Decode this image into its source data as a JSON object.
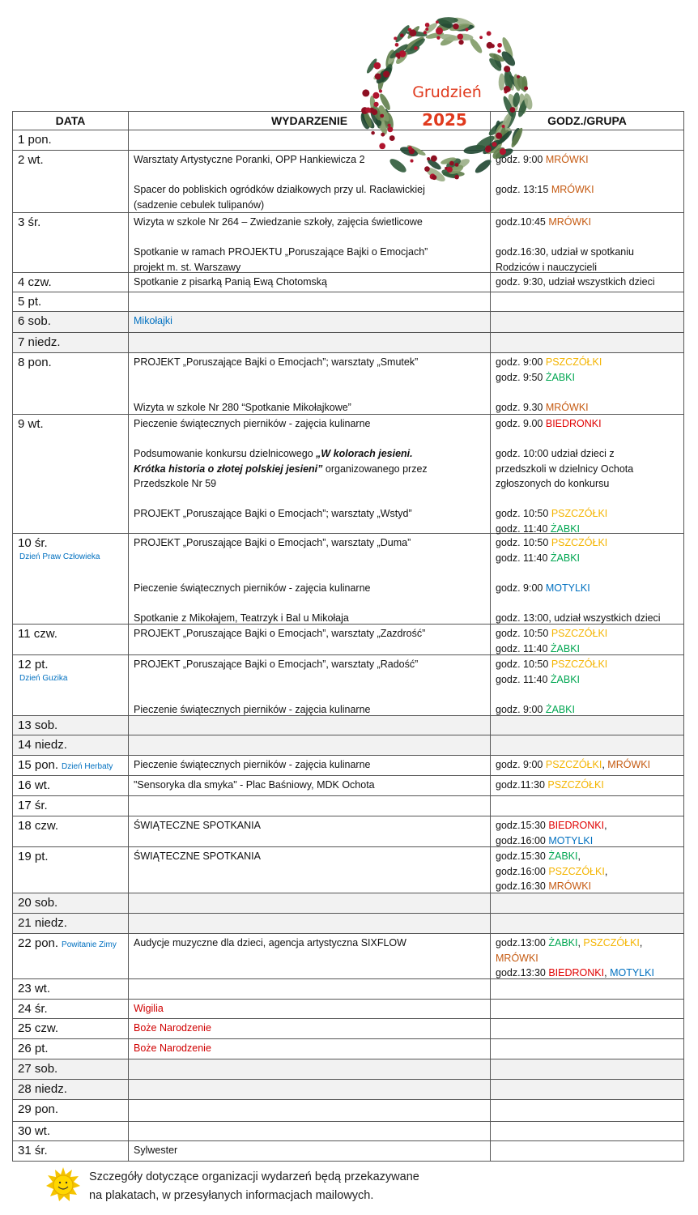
{
  "title": {
    "month": "Grudzień",
    "year": "2025"
  },
  "colors": {
    "MRÓWKI": "#c55a11",
    "PSZCZÓŁKI": "#f4b400",
    "ŻABKI": "#00a651",
    "BIEDRONKI": "#e00000",
    "MOTYLKI": "#0070c0",
    "note": "#0070c0",
    "holiday": "#d00000",
    "weekend_bg": "#f2f2f2",
    "title": "#e03a1e"
  },
  "headers": [
    "DATA",
    "WYDARZENIE",
    "GODZ./GRUPA"
  ],
  "rows": [
    {
      "date": "1 pon.",
      "entries": []
    },
    {
      "date": "2 wt.",
      "entries": [
        {
          "event": [
            [
              {
                "t": "Warsztaty Artystyczne Poranki, OPP Hankiewicza 2"
              }
            ]
          ],
          "time": [
            [
              {
                "t": "godz. 9:00 "
              },
              {
                "t": "MRÓWKI",
                "g": "MRÓWKI"
              }
            ]
          ]
        },
        {
          "event": [
            [
              {
                "t": "Spacer do pobliskich ogródków działkowych przy ul. Racławickiej"
              }
            ],
            [
              {
                "t": "(sadzenie cebulek tulipanów)"
              }
            ]
          ],
          "time": [
            [
              {
                "t": "godz. 13:15 "
              },
              {
                "t": "MRÓWKI",
                "g": "MRÓWKI"
              }
            ]
          ]
        }
      ]
    },
    {
      "date": "3 śr.",
      "entries": [
        {
          "event": [
            [
              {
                "t": "Wizyta w szkole Nr 264 – Zwiedzanie szkoły, zajęcia świetlicowe"
              }
            ]
          ],
          "time": [
            [
              {
                "t": "godz.10:45 "
              },
              {
                "t": "MRÓWKI",
                "g": "MRÓWKI"
              }
            ]
          ]
        },
        {
          "event": [
            [
              {
                "t": "Spotkanie w ramach PROJEKTU „Poruszające Bajki o Emocjach”"
              }
            ],
            [
              {
                "t": "projekt m. st. Warszawy"
              }
            ]
          ],
          "time": [
            [
              {
                "t": "godz.16:30, udział w spotkaniu"
              }
            ],
            [
              {
                "t": "Rodziców i nauczycieli"
              }
            ]
          ]
        }
      ]
    },
    {
      "date": "4 czw.",
      "entries": [
        {
          "event": [
            [
              {
                "t": "Spotkanie z pisarką Panią Ewą Chotomską"
              }
            ]
          ],
          "time": [
            [
              {
                "t": "godz. 9:30, udział wszystkich dzieci"
              }
            ]
          ]
        }
      ]
    },
    {
      "date": "5 pt.",
      "entries": []
    },
    {
      "date": "6 sob.",
      "weekend": true,
      "entries": [
        {
          "event": [
            [
              {
                "t": "Mikołajki",
                "g": "MOTYLKI"
              }
            ]
          ],
          "time": []
        }
      ]
    },
    {
      "date": "7 niedz.",
      "weekend": true,
      "entries": []
    },
    {
      "date": "8 pon.",
      "entries": [
        {
          "event": [
            [
              {
                "t": "PROJEKT „Poruszające Bajki o Emocjach”; warsztaty „Smutek”"
              }
            ]
          ],
          "time": [
            [
              {
                "t": "godz. 9:00  "
              },
              {
                "t": "PSZCZÓŁKI",
                "g": "PSZCZÓŁKI"
              }
            ],
            [
              {
                "t": "godz. 9:50  "
              },
              {
                "t": "ŻABKI",
                "g": "ŻABKI"
              }
            ]
          ]
        },
        {
          "event": [
            [
              {
                "t": "Wizyta w szkole Nr 280 “Spotkanie Mikołajkowe”"
              }
            ]
          ],
          "time": [
            [
              {
                "t": "godz. 9.30  "
              },
              {
                "t": "MRÓWKI",
                "g": "MRÓWKI"
              }
            ]
          ]
        }
      ]
    },
    {
      "date": "9 wt.",
      "entries": [
        {
          "event": [
            [
              {
                "t": "Pieczenie świątecznych pierników - zajęcia kulinarne"
              }
            ]
          ],
          "time": [
            [
              {
                "t": "godz. 9.00 "
              },
              {
                "t": "BIEDRONKI",
                "g": "BIEDRONKI"
              }
            ]
          ]
        },
        {
          "event": [
            [
              {
                "t": "Podsumowanie konkursu dzielnicowego "
              },
              {
                "t": "„W kolorach jesieni.",
                "s": "bi"
              }
            ],
            [
              {
                "t": "Krótka historia o złotej polskiej jesieni”",
                "s": "bi"
              },
              {
                "t": " organizowanego przez"
              }
            ],
            [
              {
                "t": "Przedszkole Nr 59"
              }
            ]
          ],
          "time": [
            [
              {
                "t": "godz. 10:00 udział dzieci z"
              }
            ],
            [
              {
                "t": "przedszkoli w dzielnicy Ochota"
              }
            ],
            [
              {
                "t": "zgłoszonych do konkursu"
              }
            ]
          ]
        },
        {
          "event": [
            [
              {
                "t": "PROJEKT „Poruszające Bajki o Emocjach”; warsztaty „Wstyd”"
              }
            ]
          ],
          "time": [
            [
              {
                "t": "godz. 10:50  "
              },
              {
                "t": "PSZCZÓŁKI",
                "g": "PSZCZÓŁKI"
              }
            ],
            [
              {
                "t": "godz. 11:40  "
              },
              {
                "t": "ŻABKI",
                "g": "ŻABKI"
              }
            ]
          ]
        }
      ]
    },
    {
      "date": "10 śr.",
      "note": "Dzień Praw Człowieka",
      "entries": [
        {
          "event": [
            [
              {
                "t": "PROJEKT „Poruszające Bajki o Emocjach”, warsztaty „Duma”"
              }
            ]
          ],
          "time": [
            [
              {
                "t": "godz. 10:50  "
              },
              {
                "t": "PSZCZÓŁKI",
                "g": "PSZCZÓŁKI"
              }
            ],
            [
              {
                "t": "godz. 11:40  "
              },
              {
                "t": "ŻABKI",
                "g": "ŻABKI"
              }
            ]
          ]
        },
        {
          "event": [
            [
              {
                "t": "Pieczenie świątecznych pierników - zajęcia kulinarne"
              }
            ]
          ],
          "time": [
            [
              {
                "t": "godz. 9:00 "
              },
              {
                "t": "MOTYLKI",
                "g": "MOTYLKI"
              }
            ]
          ]
        },
        {
          "event": [
            [
              {
                "t": "Spotkanie z Mikołajem, Teatrzyk i Bal u Mikołaja"
              }
            ]
          ],
          "time": [
            [
              {
                "t": "godz. 13:00, udział wszystkich dzieci"
              }
            ]
          ]
        }
      ]
    },
    {
      "date": "11 czw.",
      "entries": [
        {
          "event": [
            [
              {
                "t": "PROJEKT „Poruszające Bajki o Emocjach”, warsztaty „Zazdrość”"
              }
            ]
          ],
          "time": [
            [
              {
                "t": "godz. 10:50  "
              },
              {
                "t": "PSZCZÓŁKI",
                "g": "PSZCZÓŁKI"
              }
            ],
            [
              {
                "t": "godz. 11:40  "
              },
              {
                "t": "ŻABKI",
                "g": "ŻABKI"
              }
            ]
          ]
        }
      ]
    },
    {
      "date": "12 pt.",
      "note": "Dzień Guzika",
      "entries": [
        {
          "event": [
            [
              {
                "t": "PROJEKT „Poruszające Bajki o Emocjach”, warsztaty „Radość”"
              }
            ]
          ],
          "time": [
            [
              {
                "t": "godz. 10:50  "
              },
              {
                "t": "PSZCZÓŁKI",
                "g": "PSZCZÓŁKI"
              }
            ],
            [
              {
                "t": "godz. 11:40  "
              },
              {
                "t": "ŻABKI",
                "g": "ŻABKI"
              }
            ]
          ]
        },
        {
          "event": [
            [
              {
                "t": "Pieczenie świątecznych pierników - zajęcia kulinarne"
              }
            ]
          ],
          "time": [
            [
              {
                "t": "godz. 9:00  "
              },
              {
                "t": "ŻABKI",
                "g": "ŻABKI"
              }
            ]
          ]
        }
      ]
    },
    {
      "date": "13 sob.",
      "weekend": true,
      "entries": []
    },
    {
      "date": "14 niedz.",
      "weekend": true,
      "entries": []
    },
    {
      "date": "15 pon.",
      "note": "Dzień Herbaty",
      "entries": [
        {
          "event": [
            [
              {
                "t": "Pieczenie świątecznych pierników - zajęcia kulinarne"
              }
            ]
          ],
          "time": [
            [
              {
                "t": "godz. 9:00  "
              },
              {
                "t": "PSZCZÓŁKI",
                "g": "PSZCZÓŁKI"
              },
              {
                "t": ",  "
              },
              {
                "t": "MRÓWKI",
                "g": "MRÓWKI"
              }
            ]
          ]
        }
      ]
    },
    {
      "date": "16 wt.",
      "entries": [
        {
          "event": [
            [
              {
                "t": "\"Sensoryka dla smyka\" - Plac Baśniowy, MDK Ochota"
              }
            ]
          ],
          "time": [
            [
              {
                "t": "godz.11:30 "
              },
              {
                "t": "PSZCZÓŁKI",
                "g": "PSZCZÓŁKI"
              }
            ]
          ]
        }
      ]
    },
    {
      "date": "17 śr.",
      "entries": []
    },
    {
      "date": "18 czw.",
      "entries": [
        {
          "event": [
            [
              {
                "t": "ŚWIĄTECZNE SPOTKANIA"
              }
            ]
          ],
          "time": [
            [
              {
                "t": "godz.15:30 "
              },
              {
                "t": "BIEDRONKI",
                "g": "BIEDRONKI"
              },
              {
                "t": ","
              }
            ],
            [
              {
                "t": "godz.16:00 "
              },
              {
                "t": "MOTYLKI",
                "g": "MOTYLKI"
              }
            ]
          ]
        }
      ]
    },
    {
      "date": "19 pt.",
      "entries": [
        {
          "event": [
            [
              {
                "t": "ŚWIĄTECZNE SPOTKANIA"
              }
            ]
          ],
          "time": [
            [
              {
                "t": "godz.15:30 "
              },
              {
                "t": "ŻABKI",
                "g": "ŻABKI"
              },
              {
                "t": ","
              }
            ],
            [
              {
                "t": "godz.16:00 "
              },
              {
                "t": "PSZCZÓŁKI",
                "g": "PSZCZÓŁKI"
              },
              {
                "t": ","
              }
            ],
            [
              {
                "t": "godz.16:30 "
              },
              {
                "t": "MRÓWKI",
                "g": "MRÓWKI"
              }
            ]
          ]
        }
      ]
    },
    {
      "date": "20 sob.",
      "weekend": true,
      "entries": []
    },
    {
      "date": "21 niedz.",
      "weekend": true,
      "entries": []
    },
    {
      "date": "22 pon.",
      "note": "Powitanie Zimy",
      "entries": [
        {
          "event": [
            [
              {
                "t": "Audycje muzyczne dla dzieci, agencja artystyczna SIXFLOW"
              }
            ]
          ],
          "time": [
            [
              {
                "t": "godz.13:00 "
              },
              {
                "t": "ŻABKI",
                "g": "ŻABKI"
              },
              {
                "t": ", "
              },
              {
                "t": "PSZCZÓŁKI",
                "g": "PSZCZÓŁKI"
              },
              {
                "t": ","
              }
            ],
            [
              {
                "t": "MRÓWKI",
                "g": "MRÓWKI"
              }
            ],
            [
              {
                "t": "godz.13:30 "
              },
              {
                "t": "BIEDRONKI",
                "g": "BIEDRONKI"
              },
              {
                "t": ", "
              },
              {
                "t": "MOTYLKI",
                "g": "MOTYLKI"
              }
            ]
          ]
        }
      ]
    },
    {
      "date": "23 wt.",
      "entries": []
    },
    {
      "date": "24 śr.",
      "entries": [
        {
          "event": [
            [
              {
                "t": "Wigilia",
                "g": "holiday"
              }
            ]
          ],
          "time": []
        }
      ]
    },
    {
      "date": "25 czw.",
      "entries": [
        {
          "event": [
            [
              {
                "t": "Boże Narodzenie",
                "g": "holiday"
              }
            ]
          ],
          "time": []
        }
      ]
    },
    {
      "date": "26 pt.",
      "entries": [
        {
          "event": [
            [
              {
                "t": "Boże Narodzenie",
                "g": "holiday"
              }
            ]
          ],
          "time": []
        }
      ]
    },
    {
      "date": "27 sob.",
      "weekend": true,
      "entries": []
    },
    {
      "date": "28 niedz.",
      "weekend": true,
      "entries": []
    },
    {
      "date": "29 pon.",
      "entries": []
    },
    {
      "date": "30 wt.",
      "entries": []
    },
    {
      "date": "31 śr.",
      "entries": [
        {
          "event": [
            [
              {
                "t": "Sylwester"
              }
            ]
          ],
          "time": []
        }
      ]
    }
  ],
  "footer": {
    "icon": "sun-icon",
    "lines": [
      "Szczegóły dotyczące organizacji wydarzeń będą przekazywane",
      "na plakatach, w przesyłanych informacjach mailowych."
    ]
  }
}
